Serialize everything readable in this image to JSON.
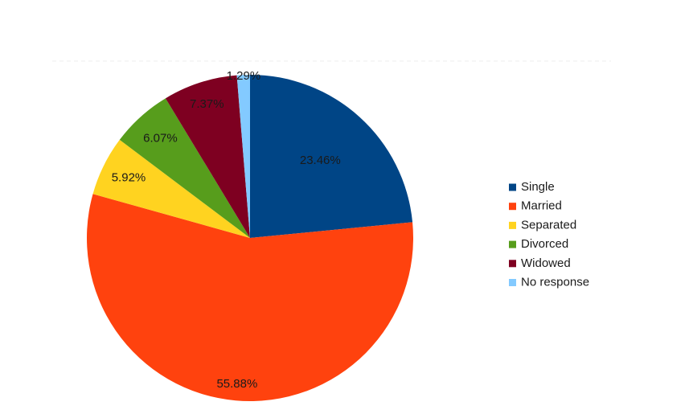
{
  "chart_data": {
    "type": "pie",
    "title": "",
    "categories": [
      "Single",
      "Married",
      "Separated",
      "Divorced",
      "Widowed",
      "No response"
    ],
    "values": [
      23.46,
      55.88,
      5.92,
      6.07,
      7.37,
      1.29
    ],
    "labels": [
      "23.46%",
      "55.88%",
      "5.92%",
      "6.07%",
      "7.37%",
      "1.29%"
    ],
    "colors": [
      "#004586",
      "#ff420e",
      "#ffd320",
      "#579d1c",
      "#7e0021",
      "#83caff"
    ],
    "start_angle": "12 o'clock",
    "direction": "clockwise",
    "legend": {
      "position": "right",
      "entries": [
        "Single",
        "Married",
        "Separated",
        "Divorced",
        "Widowed",
        "No response"
      ]
    }
  }
}
